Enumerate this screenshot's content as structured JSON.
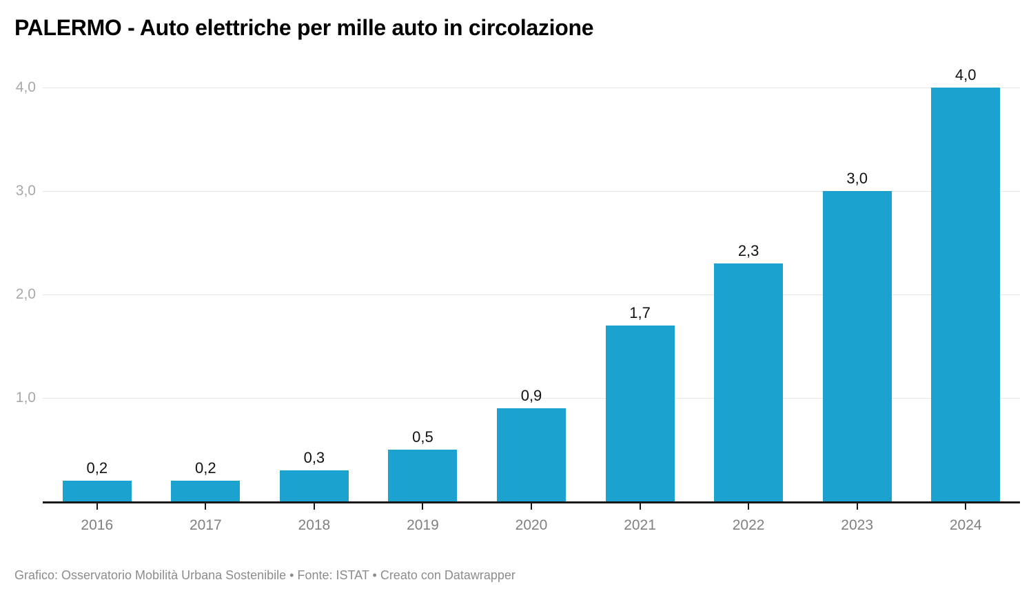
{
  "title": "PALERMO - Auto elettriche per mille auto in circolazione",
  "footer": {
    "text": "Grafico: Osservatorio Mobilità Urbana Sostenibile • Fonte: ISTAT • Creato con Datawrapper"
  },
  "colors": {
    "bar": "#1ca2ce",
    "grid": "#e6e6e6",
    "axis": "#18191c",
    "value_label": "#111111",
    "ytick_label": "#a8a8a8",
    "xtick_label": "#808080",
    "footer_text": "#8c8c8c"
  },
  "chart_data": {
    "type": "bar",
    "title": "PALERMO - Auto elettriche per mille auto in circolazione",
    "categories": [
      "2016",
      "2017",
      "2018",
      "2019",
      "2020",
      "2021",
      "2022",
      "2023",
      "2024"
    ],
    "values": [
      0.2,
      0.2,
      0.3,
      0.5,
      0.9,
      1.7,
      2.3,
      3.0,
      4.0
    ],
    "value_labels": [
      "0,2",
      "0,2",
      "0,3",
      "0,5",
      "0,9",
      "1,7",
      "2,3",
      "3,0",
      "4,0"
    ],
    "yticks": [
      1.0,
      2.0,
      3.0,
      4.0
    ],
    "ytick_labels": [
      "1,0",
      "2,0",
      "3,0",
      "4,0"
    ],
    "ylim": [
      0,
      4.0
    ],
    "xlabel": "",
    "ylabel": "",
    "grid": "horizontal",
    "legend": "none"
  }
}
